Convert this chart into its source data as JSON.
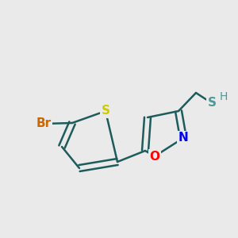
{
  "background_color": "#EAEAEA",
  "bond_color": "#1E5C5C",
  "bond_width": 1.8,
  "atoms": {
    "Br": {
      "color": "#CC6600",
      "fontsize": 11,
      "fontweight": "bold"
    },
    "S_thio": {
      "color": "#CCCC00",
      "fontsize": 11,
      "fontweight": "bold"
    },
    "O": {
      "color": "#FF0000",
      "fontsize": 11,
      "fontweight": "bold"
    },
    "N": {
      "color": "#0000EE",
      "fontsize": 11,
      "fontweight": "bold"
    },
    "S_thiol": {
      "color": "#4D9999",
      "fontsize": 11,
      "fontweight": "bold"
    },
    "H": {
      "color": "#4D9999",
      "fontsize": 10,
      "fontweight": "normal"
    }
  },
  "figsize": [
    3.0,
    3.0
  ],
  "dpi": 100,
  "xlim": [
    0,
    300
  ],
  "ylim": [
    0,
    300
  ]
}
